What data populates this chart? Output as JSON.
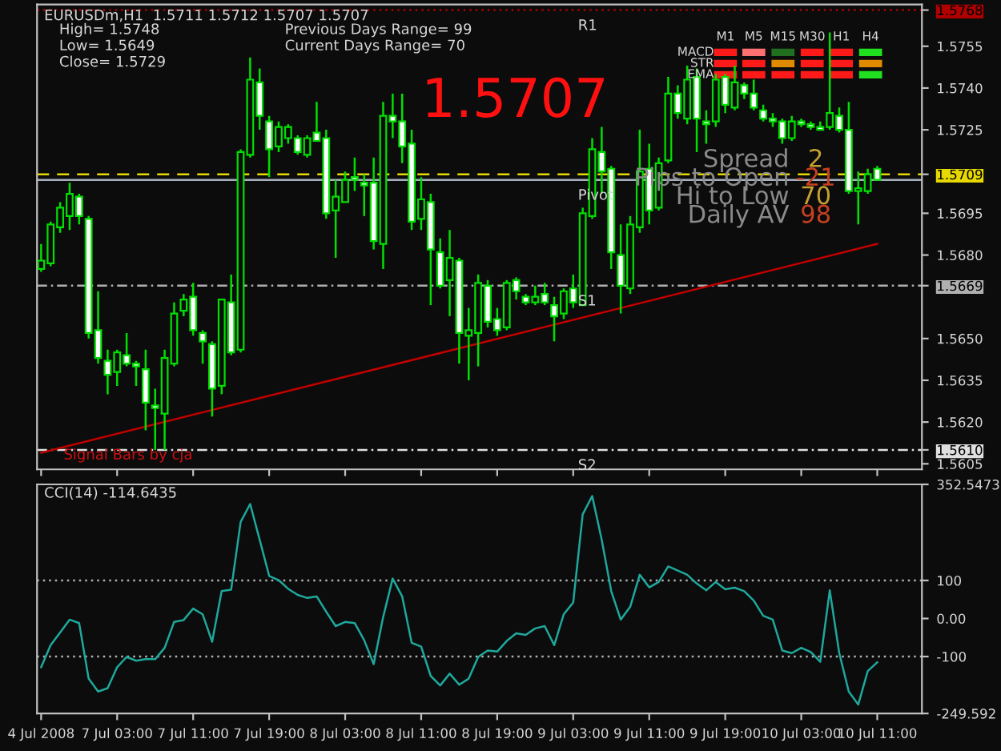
{
  "chart_data": [
    {
      "type": "candlestick",
      "title": "EURUSDm,H1  1.5711 1.5712 1.5707 1.5707",
      "color": "#00e000",
      "tick_labels": "y",
      "categories": [
        "4 Jul 2008",
        null,
        null,
        null,
        null,
        null,
        null,
        null,
        "7 Jul 03:00",
        null,
        null,
        null,
        null,
        null,
        null,
        null,
        "7 Jul 11:00",
        null,
        null,
        null,
        null,
        null,
        null,
        null,
        "7 Jul 19:00",
        null,
        null,
        null,
        null,
        null,
        null,
        null,
        "8 Jul 03:00",
        null,
        null,
        null,
        null,
        null,
        null,
        null,
        "8 Jul 11:00",
        null,
        null,
        null,
        null,
        null,
        null,
        null,
        "8 Jul 19:00",
        null,
        null,
        null,
        null,
        null,
        null,
        null,
        "9 Jul 03:00",
        null,
        null,
        null,
        null,
        null,
        null,
        null,
        "9 Jul 11:00",
        null,
        null,
        null,
        null,
        null,
        null,
        null,
        "9 Jul 19:00",
        null,
        null,
        null,
        null,
        null,
        null,
        null,
        "10 Jul 03:00",
        null,
        null,
        null,
        null,
        null,
        null,
        null,
        "10 Jul 11:00"
      ],
      "ohlc": [
        [
          1.5675,
          1.5684,
          1.5674,
          1.5678
        ],
        [
          1.5677,
          1.5692,
          1.5676,
          1.5691
        ],
        [
          1.569,
          1.5699,
          1.5688,
          1.5697
        ],
        [
          1.5694,
          1.5706,
          1.5689,
          1.5702
        ],
        [
          1.5701,
          1.5702,
          1.5691,
          1.5694
        ],
        [
          1.5693,
          1.5694,
          1.565,
          1.5652
        ],
        [
          1.5653,
          1.5667,
          1.5641,
          1.5643
        ],
        [
          1.5642,
          1.5646,
          1.563,
          1.5637
        ],
        [
          1.5638,
          1.5646,
          1.5633,
          1.5645
        ],
        [
          1.5644,
          1.5652,
          1.564,
          1.5641
        ],
        [
          1.5641,
          1.5642,
          1.5633,
          1.564
        ],
        [
          1.5639,
          1.5646,
          1.5617,
          1.5627
        ],
        [
          1.5626,
          1.5632,
          1.561,
          1.5625
        ],
        [
          1.5623,
          1.5646,
          1.561,
          1.5643
        ],
        [
          1.5641,
          1.5663,
          1.564,
          1.5659
        ],
        [
          1.566,
          1.5666,
          1.5658,
          1.5664
        ],
        [
          1.5665,
          1.567,
          1.5651,
          1.5653
        ],
        [
          1.5652,
          1.5653,
          1.5641,
          1.5649
        ],
        [
          1.5648,
          1.5649,
          1.5622,
          1.5632
        ],
        [
          1.5633,
          1.5664,
          1.563,
          1.5664
        ],
        [
          1.5663,
          1.5673,
          1.5644,
          1.5645
        ],
        [
          1.5646,
          1.5718,
          1.5645,
          1.5717
        ],
        [
          1.5716,
          1.5751,
          1.5715,
          1.5743
        ],
        [
          1.5742,
          1.5747,
          1.5725,
          1.573
        ],
        [
          1.5728,
          1.573,
          1.5708,
          1.5718
        ],
        [
          1.5719,
          1.5728,
          1.5717,
          1.5726
        ],
        [
          1.5722,
          1.5727,
          1.572,
          1.5726
        ],
        [
          1.5722,
          1.5723,
          1.5716,
          1.5717
        ],
        [
          1.5716,
          1.5723,
          1.5715,
          1.5722
        ],
        [
          1.5724,
          1.5735,
          1.5721,
          1.5721
        ],
        [
          1.5722,
          1.5725,
          1.5693,
          1.5695
        ],
        [
          1.5696,
          1.5707,
          1.5679,
          1.5701
        ],
        [
          1.5699,
          1.571,
          1.5699,
          1.5707
        ],
        [
          1.5708,
          1.5715,
          1.5703,
          1.5707
        ],
        [
          1.5706,
          1.5709,
          1.5694,
          1.5705
        ],
        [
          1.5706,
          1.5715,
          1.5682,
          1.5685
        ],
        [
          1.5684,
          1.5735,
          1.5675,
          1.573
        ],
        [
          1.573,
          1.5738,
          1.5722,
          1.5728
        ],
        [
          1.5728,
          1.5738,
          1.5713,
          1.5719
        ],
        [
          1.572,
          1.5725,
          1.5689,
          1.5692
        ],
        [
          1.5693,
          1.5708,
          1.5689,
          1.57
        ],
        [
          1.5699,
          1.5702,
          1.5662,
          1.5682
        ],
        [
          1.5681,
          1.5686,
          1.5668,
          1.5669
        ],
        [
          1.5671,
          1.5689,
          1.5658,
          1.5679
        ],
        [
          1.5678,
          1.5679,
          1.5641,
          1.5652
        ],
        [
          1.5651,
          1.5661,
          1.5635,
          1.5653
        ],
        [
          1.5652,
          1.5673,
          1.564,
          1.567
        ],
        [
          1.5669,
          1.5671,
          1.5654,
          1.5656
        ],
        [
          1.5657,
          1.5661,
          1.5651,
          1.5653
        ],
        [
          1.5654,
          1.5671,
          1.5653,
          1.567
        ],
        [
          1.5671,
          1.5672,
          1.5664,
          1.5667
        ],
        [
          1.5665,
          1.5666,
          1.5662,
          1.5663
        ],
        [
          1.5663,
          1.5669,
          1.5662,
          1.5665
        ],
        [
          1.5666,
          1.567,
          1.5662,
          1.5663
        ],
        [
          1.5662,
          1.5665,
          1.5649,
          1.5658
        ],
        [
          1.5659,
          1.5668,
          1.5657,
          1.5667
        ],
        [
          1.5668,
          1.5673,
          1.5661,
          1.5663
        ],
        [
          1.5662,
          1.5697,
          1.5662,
          1.5695
        ],
        [
          1.5694,
          1.5722,
          1.5693,
          1.5718
        ],
        [
          1.5717,
          1.5726,
          1.5702,
          1.571
        ],
        [
          1.5711,
          1.5712,
          1.5675,
          1.5681
        ],
        [
          1.568,
          1.5691,
          1.5659,
          1.5669
        ],
        [
          1.5668,
          1.5694,
          1.5666,
          1.5691
        ],
        [
          1.569,
          1.5725,
          1.5688,
          1.571
        ],
        [
          1.5711,
          1.572,
          1.5691,
          1.5696
        ],
        [
          1.5697,
          1.5715,
          1.5696,
          1.5713
        ],
        [
          1.5714,
          1.5744,
          1.5713,
          1.5738
        ],
        [
          1.5738,
          1.5741,
          1.5729,
          1.5731
        ],
        [
          1.5729,
          1.5748,
          1.5727,
          1.5743
        ],
        [
          1.5744,
          1.5747,
          1.5717,
          1.5729
        ],
        [
          1.5728,
          1.5732,
          1.572,
          1.5727
        ],
        [
          1.5728,
          1.5745,
          1.5726,
          1.5743
        ],
        [
          1.5744,
          1.5745,
          1.5731,
          1.5734
        ],
        [
          1.5733,
          1.5748,
          1.5732,
          1.5742
        ],
        [
          1.5741,
          1.5742,
          1.5736,
          1.5738
        ],
        [
          1.5738,
          1.5743,
          1.5732,
          1.5733
        ],
        [
          1.5732,
          1.5734,
          1.5728,
          1.5729
        ],
        [
          1.5729,
          1.5731,
          1.5726,
          1.5728
        ],
        [
          1.5728,
          1.5729,
          1.572,
          1.5722
        ],
        [
          1.5722,
          1.573,
          1.5721,
          1.5728
        ],
        [
          1.5728,
          1.5729,
          1.5726,
          1.5727
        ],
        [
          1.5727,
          1.5728,
          1.5725,
          1.5726
        ],
        [
          1.5726,
          1.5728,
          1.5725,
          1.5725
        ],
        [
          1.5726,
          1.576,
          1.5725,
          1.5731
        ],
        [
          1.573,
          1.5733,
          1.5724,
          1.5725
        ],
        [
          1.5725,
          1.5735,
          1.5702,
          1.5703
        ],
        [
          1.5703,
          1.571,
          1.5691,
          1.5704
        ],
        [
          1.5703,
          1.5711,
          1.5702,
          1.5709
        ],
        [
          1.5711,
          1.5712,
          1.5707,
          1.5707
        ]
      ],
      "series": [
        {
          "type": "line",
          "color": "#c00000",
          "x": [
            "4 Jul 2008",
            "10 Jul 11:00"
          ],
          "values": [
            1.5609,
            1.5684
          ]
        }
      ],
      "ylim": [
        1.5603,
        1.577
      ],
      "yticks": [
        1.5605,
        {
          "value": 1.561,
          "label": "1.5610"
        },
        {
          "value": 1.562,
          "label": "1.5620"
        },
        1.5635,
        {
          "value": 1.565,
          "label": "1.5650"
        },
        1.5669,
        {
          "value": 1.568,
          "label": "1.5680"
        },
        1.5695,
        1.5709,
        1.5725,
        {
          "value": 1.574,
          "label": "1.5740"
        },
        1.5755,
        1.5768
      ],
      "ref_lines": [
        {
          "axis": "y",
          "value": 1.5768,
          "label": "R1",
          "color": "#b00000",
          "line_style": "dotted"
        },
        {
          "axis": "y",
          "value": 1.5709,
          "label": null,
          "color": "#e6d800",
          "line_style": "dashed"
        },
        {
          "axis": "y",
          "value": 1.5707,
          "label": "Pivot",
          "color": "#a8b0c0",
          "line_style": "solid"
        },
        {
          "axis": "y",
          "value": 1.5669,
          "label": "S1",
          "color": "#b0b0b0",
          "line_style": "dashdot"
        },
        {
          "axis": "y",
          "value": 1.561,
          "label": "S2",
          "color": "#e0e0e0",
          "line_style": "dashdot"
        }
      ],
      "annotations": [
        "High= 1.5748",
        "Previous Days Range= 99",
        "Low= 1.5649",
        "Current Days Range= 70",
        "Close= 1.5729",
        "1.5707",
        "Spread",
        "2",
        "Pips to Open",
        "-21",
        "Hi to Low",
        "70",
        "Daily AV",
        "98",
        "M1",
        "M5",
        "M15",
        "M30",
        "H1",
        "H4",
        "MACD",
        "STR",
        "EMA",
        "Signal Bars by cja"
      ]
    },
    {
      "type": "line",
      "title": "CCI(14) -114.6435",
      "categories": [
        "4 Jul 2008",
        null,
        null,
        null,
        null,
        null,
        null,
        null,
        "7 Jul 03:00",
        null,
        null,
        null,
        null,
        null,
        null,
        null,
        "7 Jul 11:00",
        null,
        null,
        null,
        null,
        null,
        null,
        null,
        "7 Jul 19:00",
        null,
        null,
        null,
        null,
        null,
        null,
        null,
        "8 Jul 03:00",
        null,
        null,
        null,
        null,
        null,
        null,
        null,
        "8 Jul 11:00",
        null,
        null,
        null,
        null,
        null,
        null,
        null,
        "8 Jul 19:00",
        null,
        null,
        null,
        null,
        null,
        null,
        null,
        "9 Jul 03:00",
        null,
        null,
        null,
        null,
        null,
        null,
        null,
        "9 Jul 11:00",
        null,
        null,
        null,
        null,
        null,
        null,
        null,
        "9 Jul 19:00",
        null,
        null,
        null,
        null,
        null,
        null,
        null,
        "10 Jul 03:00",
        null,
        null,
        null,
        null,
        null,
        null,
        null,
        "10 Jul 11:00"
      ],
      "series": [
        {
          "color": "#1fa89c",
          "values": [
            -128,
            -70,
            -37,
            -3,
            -12,
            -158,
            -192,
            -183,
            -128,
            -101,
            -111,
            -107,
            -107,
            -77,
            -9,
            -4,
            26,
            11,
            -61,
            72,
            76,
            254,
            301,
            207,
            112,
            101,
            78,
            62,
            54,
            58,
            18,
            -20,
            -9,
            -12,
            -57,
            -120,
            4,
            105,
            58,
            -64,
            -74,
            -151,
            -176,
            -145,
            -174,
            -158,
            -101,
            -84,
            -87,
            -59,
            -39,
            -43,
            -26,
            -20,
            -70,
            11,
            42,
            274,
            322,
            207,
            72,
            -3,
            31,
            115,
            82,
            96,
            137,
            126,
            115,
            92,
            74,
            96,
            77,
            81,
            72,
            47,
            7,
            -3,
            -84,
            -91,
            -77,
            -88,
            -114,
            74,
            -91,
            -192,
            -226,
            -138,
            -115
          ]
        }
      ],
      "ylim": [
        -249.592,
        352.5473
      ],
      "yticks": [
        -249.592,
        -100,
        {
          "value": 0,
          "label": "0.00"
        },
        100,
        352.5473
      ],
      "ref_lines": [
        {
          "axis": "y",
          "value": 100,
          "label": null,
          "color": "#b0b0b0",
          "line_style": "dotted"
        },
        {
          "axis": "y",
          "value": -100,
          "label": null,
          "color": "#b0b0b0",
          "line_style": "dotted"
        }
      ]
    }
  ]
}
